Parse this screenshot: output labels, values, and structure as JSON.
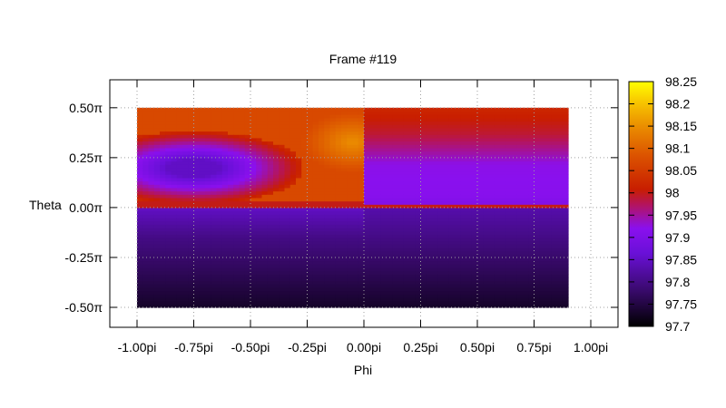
{
  "chart_data": {
    "type": "heatmap",
    "title": "Frame #119",
    "xlabel": "Phi",
    "ylabel": "Theta",
    "xlim": [
      -1.12,
      1.12
    ],
    "ylim": [
      -0.6,
      0.64
    ],
    "x_ticks": [
      {
        "value": -1.0,
        "label": "-1.00pi"
      },
      {
        "value": -0.75,
        "label": "-0.75pi"
      },
      {
        "value": -0.5,
        "label": "-0.50pi"
      },
      {
        "value": -0.25,
        "label": "-0.25pi"
      },
      {
        "value": 0.0,
        "label": "0.00pi"
      },
      {
        "value": 0.25,
        "label": "0.25pi"
      },
      {
        "value": 0.5,
        "label": "0.50pi"
      },
      {
        "value": 0.75,
        "label": "0.75pi"
      },
      {
        "value": 1.0,
        "label": "1.00pi"
      }
    ],
    "y_ticks": [
      {
        "value": 0.5,
        "label": "0.50π"
      },
      {
        "value": 0.25,
        "label": "0.25π"
      },
      {
        "value": 0.0,
        "label": "0.00π"
      },
      {
        "value": -0.25,
        "label": "-0.25π"
      },
      {
        "value": -0.5,
        "label": "-0.50π"
      }
    ],
    "data_extent": {
      "x": [
        -1.0,
        0.9
      ],
      "y": [
        -0.5,
        0.5
      ]
    },
    "colorbar": {
      "min": 97.7,
      "max": 98.25,
      "palette": "gnuplot black-blue-purple-red-orange-yellow",
      "ticks": [
        "97.7",
        "97.75",
        "97.8",
        "97.85",
        "97.9",
        "97.95",
        "98",
        "98.05",
        "98.1",
        "98.15",
        "98.2",
        "98.25"
      ]
    },
    "grid": true,
    "regions": [
      {
        "name": "left-upper",
        "x": [
          -1.0,
          0.0
        ],
        "y": [
          0.0,
          0.5
        ],
        "base": 98.07,
        "blob_center": [
          -0.75,
          0.2
        ],
        "blob_min": 97.85
      },
      {
        "name": "center-hot",
        "x": [
          -0.25,
          0.0
        ],
        "y": [
          0.2,
          0.45
        ],
        "peak": 98.15
      },
      {
        "name": "right-upper",
        "x": [
          0.0,
          0.9
        ],
        "y": [
          0.0,
          0.5
        ],
        "top": 98.02,
        "bottom": 97.9
      },
      {
        "name": "lower",
        "x": [
          -1.0,
          0.9
        ],
        "y": [
          -0.5,
          0.0
        ],
        "top": 97.83,
        "bottom": 97.73
      }
    ]
  }
}
